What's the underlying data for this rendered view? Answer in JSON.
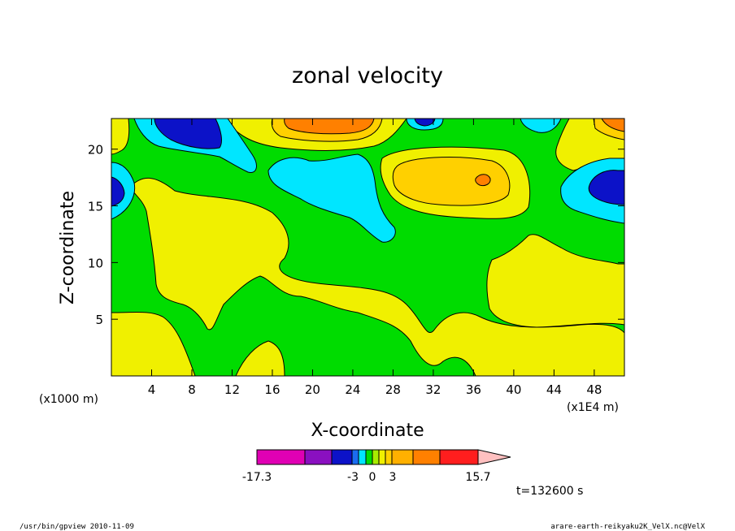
{
  "chart_data": {
    "type": "heatmap",
    "title": "zonal velocity",
    "xlabel": "X-coordinate",
    "ylabel": "Z-coordinate",
    "x_unit_label": "(x1E4 m)",
    "y_unit_label": "(x1000 m)",
    "xlim": [
      0,
      51
    ],
    "ylim": [
      0,
      22.7
    ],
    "x_ticks": [
      "4",
      "8",
      "12",
      "16",
      "20",
      "24",
      "28",
      "32",
      "36",
      "40",
      "44",
      "48"
    ],
    "y_ticks": [
      "5",
      "10",
      "15",
      "20"
    ],
    "time_label": "t=132600 s",
    "colorbar": {
      "tick_labels": [
        "-17.3",
        "-3",
        "0",
        "3",
        "15.7"
      ],
      "colors": [
        "#e000b4",
        "#8a10c0",
        "#0c12c8",
        "#1b6cf0",
        "#00e6ff",
        "#00dc00",
        "#a8ec00",
        "#f0f000",
        "#ffd000",
        "#ffb000",
        "#ff8000",
        "#ff1e1e",
        "#ff7a78",
        "#ffc0c0"
      ]
    },
    "levels": [
      {
        "name": "blue",
        "color": "#0c12c8"
      },
      {
        "name": "cyan",
        "color": "#00e6ff"
      },
      {
        "name": "green",
        "color": "#00dc00"
      },
      {
        "name": "yellow",
        "color": "#f0f000"
      },
      {
        "name": "gold",
        "color": "#ffd000"
      },
      {
        "name": "orange",
        "color": "#ff8000"
      }
    ]
  },
  "footer": {
    "left": "/usr/bin/gpview  2010-11-09",
    "right": "arare-earth-reikyaku2K_VelX.nc@VelX"
  }
}
